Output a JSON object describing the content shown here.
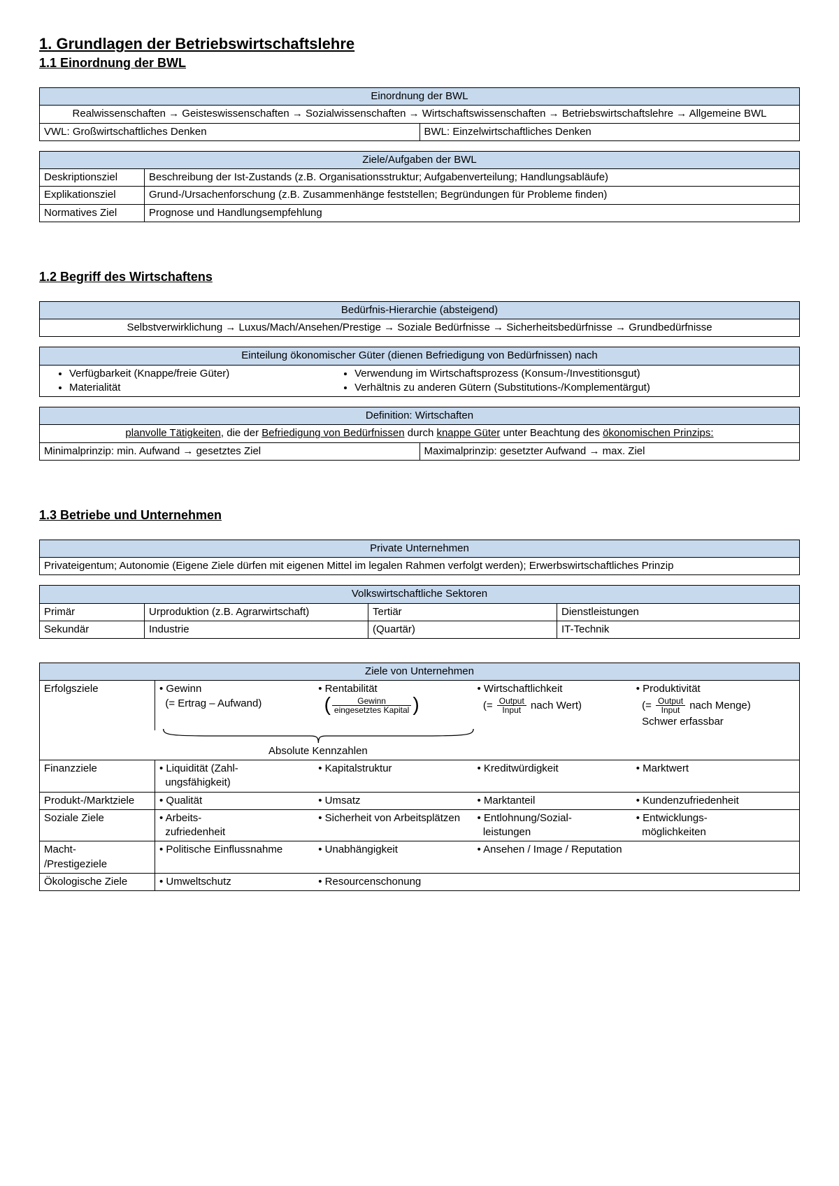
{
  "colors": {
    "header_bg": "#c7d9ed",
    "border": "#000000",
    "text": "#000000",
    "page_bg": "#ffffff"
  },
  "h1": "1. Grundlagen der Betriebswirtschaftslehre",
  "s11": {
    "title": "1.1 Einordnung der BWL",
    "t1": {
      "header": "Einordnung der BWL",
      "chain": "Realwissenschaften → Geisteswissenschaften → Sozialwissenschaften → Wirtschaftswissenschaften → Betriebswirtschaftslehre → Allgemeine BWL",
      "vwl": "VWL: Großwirtschaftliches Denken",
      "bwl": "BWL: Einzelwirtschaftliches Denken"
    },
    "t2": {
      "header": "Ziele/Aufgaben der BWL",
      "rows": [
        {
          "k": "Deskriptionsziel",
          "v": "Beschreibung der Ist-Zustands (z.B. Organisationsstruktur; Aufgabenverteilung; Handlungsabläufe)"
        },
        {
          "k": "Explikationsziel",
          "v": "Grund-/Ursachenforschung (z.B. Zusammenhänge feststellen; Begründungen für Probleme finden)"
        },
        {
          "k": "Normatives Ziel",
          "v": "Prognose und Handlungsempfehlung"
        }
      ]
    }
  },
  "s12": {
    "title": "1.2 Begriff des Wirtschaftens",
    "t1": {
      "header": "Bedürfnis-Hierarchie (absteigend)",
      "chain": "Selbstverwirklichung → Luxus/Mach/Ansehen/Prestige → Soziale Bedürfnisse → Sicherheitsbedürfnisse → Grundbedürfnisse"
    },
    "t2": {
      "header": "Einteilung ökonomischer Güter (dienen Befriedigung von Bedürfnissen) nach",
      "left": [
        "Verfügbarkeit (Knappe/freie Güter)",
        "Materialität"
      ],
      "right": [
        "Verwendung im Wirtschaftsprozess (Konsum-/Investitionsgut)",
        "Verhältnis zu anderen Gütern (Substitutions-/Komplementärgut)"
      ]
    },
    "t3": {
      "header": "Definition: Wirtschaften",
      "def_pre": "planvolle Tätigkeiten",
      "def_mid1": ", die der ",
      "def_u2": "Befriedigung von Bedürfnissen",
      "def_mid2": " durch ",
      "def_u3": "knappe Güter",
      "def_mid3": " unter Beachtung des ",
      "def_u4": "ökonomischen Prinzips:",
      "min": "Minimalprinzip: min. Aufwand → gesetztes Ziel",
      "max": "Maximalprinzip: gesetzter Aufwand → max. Ziel"
    }
  },
  "s13": {
    "title": "1.3 Betriebe und Unternehmen",
    "t1": {
      "header": "Private Unternehmen",
      "body": "Privateigentum; Autonomie (Eigene Ziele dürfen mit eigenen Mittel im legalen Rahmen verfolgt werden); Erwerbswirtschaftliches Prinzip"
    },
    "t2": {
      "header": "Volkswirtschaftliche Sektoren",
      "rows": [
        [
          "Primär",
          "Urproduktion (z.B. Agrarwirtschaft)",
          "Tertiär",
          "Dienstleistungen"
        ],
        [
          "Sekundär",
          "Industrie",
          "(Quartär)",
          "IT-Technik"
        ]
      ]
    },
    "t3": {
      "header": "Ziele von Unternehmen",
      "erfolg": {
        "label": "Erfolgsziele",
        "c1": {
          "t": "Gewinn",
          "sub": "(= Ertrag – Aufwand)"
        },
        "c2": {
          "t": "Rentabilität",
          "num": "Gewinn",
          "den": "eingesetztes Kapital"
        },
        "c3": {
          "t": "Wirtschaftlichkeit",
          "num": "Output",
          "den": "Input",
          "tail": " nach Wert)"
        },
        "c4": {
          "t": "Produktivität",
          "num": "Output",
          "den": "Input",
          "tail": " nach Menge)",
          "extra": "Schwer erfassbar"
        },
        "brace": "Absolute Kennzahlen"
      },
      "rows": [
        {
          "label": "Finanzziele",
          "c": [
            "Liquidität (Zahl­ungsfähigkeit)",
            "Kapitalstruktur",
            "Kreditwürdigkeit",
            "Marktwert"
          ]
        },
        {
          "label": "Produkt-/Marktziele",
          "c": [
            "Qualität",
            "Umsatz",
            "Marktanteil",
            "Kundenzufriedenheit"
          ]
        },
        {
          "label": "Soziale Ziele",
          "c": [
            "Arbeits­zufriedenheit",
            "Sicherheit von Arbeitsplätzen",
            "Entlohnung/Sozial­leistungen",
            "Entwicklungs­möglichkeiten"
          ]
        },
        {
          "label": "Macht-\n/Prestigeziele",
          "c": [
            "Politische Einflussnahme",
            "Unabhängigkeit",
            "Ansehen / Image / Reputation",
            ""
          ]
        },
        {
          "label": "Ökologische Ziele",
          "c": [
            "Umweltschutz",
            "Resourcenschonung",
            "",
            ""
          ]
        }
      ]
    }
  }
}
